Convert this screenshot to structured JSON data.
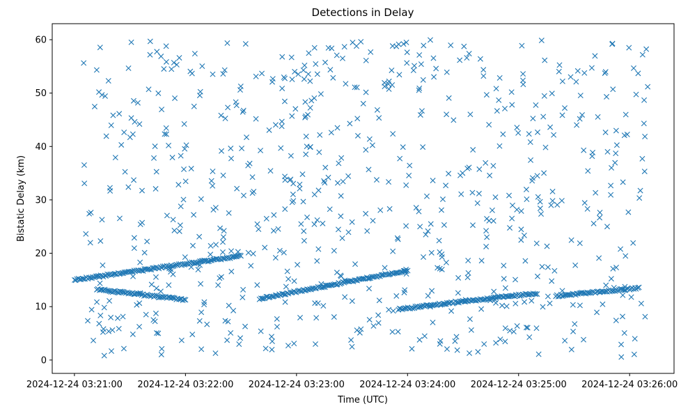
{
  "chart_data": {
    "type": "scatter",
    "title": "Detections in Delay",
    "xlabel": "Time (UTC)",
    "ylabel": "Bistatic Delay (km)",
    "x_range": [
      "2024-12-24 03:20:48",
      "2024-12-24 03:26:24"
    ],
    "ylim": [
      -2.5,
      63
    ],
    "x_ticks": [
      "2024-12-24 03:21:00",
      "2024-12-24 03:22:00",
      "2024-12-24 03:23:00",
      "2024-12-24 03:24:00",
      "2024-12-24 03:25:00",
      "2024-12-24 03:26:00"
    ],
    "y_ticks": [
      0,
      10,
      20,
      30,
      40,
      50,
      60
    ],
    "grid": false,
    "marker": "x",
    "color": "#1f77b4",
    "tracks": [
      {
        "start": "2024-12-24 03:21:00",
        "end": "2024-12-24 03:22:30",
        "y_start": 15.0,
        "y_end": 19.5
      },
      {
        "start": "2024-12-24 03:21:12",
        "end": "2024-12-24 03:22:00",
        "y_start": 13.2,
        "y_end": 11.3
      },
      {
        "start": "2024-12-24 03:22:40",
        "end": "2024-12-24 03:24:00",
        "y_start": 11.5,
        "y_end": 16.8
      },
      {
        "start": "2024-12-24 03:23:55",
        "end": "2024-12-24 03:24:30",
        "y_start": 9.5,
        "y_end": 11.0
      },
      {
        "start": "2024-12-24 03:24:30",
        "end": "2024-12-24 03:25:10",
        "y_start": 11.0,
        "y_end": 12.5
      },
      {
        "start": "2024-12-24 03:25:20",
        "end": "2024-12-24 03:26:05",
        "y_start": 12.0,
        "y_end": 13.5
      }
    ],
    "clutter": {
      "start": "2024-12-24 03:21:05",
      "end": "2024-12-24 03:26:10",
      "y_range": [
        0.5,
        60
      ],
      "count": 720
    }
  }
}
